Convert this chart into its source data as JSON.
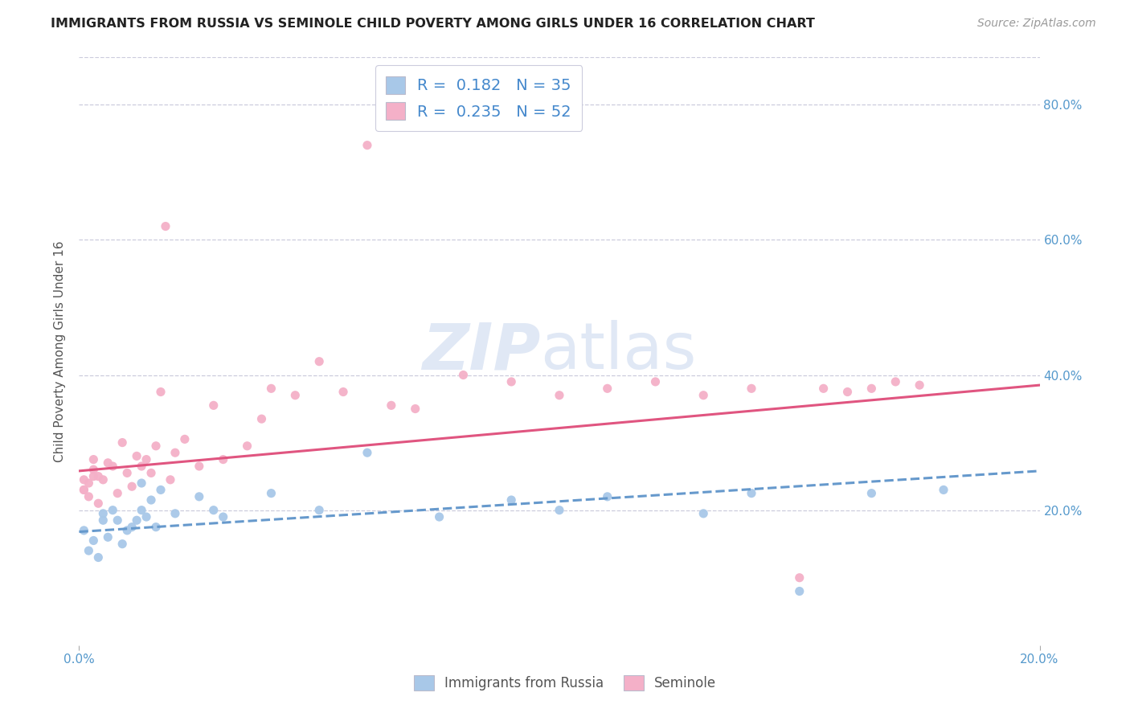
{
  "title": "IMMIGRANTS FROM RUSSIA VS SEMINOLE CHILD POVERTY AMONG GIRLS UNDER 16 CORRELATION CHART",
  "source": "Source: ZipAtlas.com",
  "ylabel": "Child Poverty Among Girls Under 16",
  "xlim": [
    0.0,
    0.2
  ],
  "ylim": [
    0.0,
    0.87
  ],
  "yticks": [
    0.2,
    0.4,
    0.6,
    0.8
  ],
  "ytick_labels": [
    "20.0%",
    "40.0%",
    "60.0%",
    "80.0%"
  ],
  "xticks": [
    0.0,
    0.2
  ],
  "xtick_labels": [
    "0.0%",
    "20.0%"
  ],
  "blue_scatter_x": [
    0.001,
    0.002,
    0.003,
    0.004,
    0.005,
    0.005,
    0.006,
    0.007,
    0.008,
    0.009,
    0.01,
    0.011,
    0.012,
    0.013,
    0.013,
    0.014,
    0.015,
    0.016,
    0.017,
    0.02,
    0.025,
    0.028,
    0.03,
    0.04,
    0.05,
    0.06,
    0.075,
    0.09,
    0.1,
    0.11,
    0.13,
    0.14,
    0.15,
    0.165,
    0.18
  ],
  "blue_scatter_y": [
    0.17,
    0.14,
    0.155,
    0.13,
    0.185,
    0.195,
    0.16,
    0.2,
    0.185,
    0.15,
    0.17,
    0.175,
    0.185,
    0.2,
    0.24,
    0.19,
    0.215,
    0.175,
    0.23,
    0.195,
    0.22,
    0.2,
    0.19,
    0.225,
    0.2,
    0.285,
    0.19,
    0.215,
    0.2,
    0.22,
    0.195,
    0.225,
    0.08,
    0.225,
    0.23
  ],
  "pink_scatter_x": [
    0.001,
    0.002,
    0.003,
    0.004,
    0.005,
    0.006,
    0.007,
    0.008,
    0.009,
    0.01,
    0.011,
    0.012,
    0.013,
    0.014,
    0.015,
    0.016,
    0.017,
    0.018,
    0.019,
    0.02,
    0.022,
    0.025,
    0.028,
    0.03,
    0.035,
    0.038,
    0.04,
    0.045,
    0.05,
    0.055,
    0.06,
    0.065,
    0.07,
    0.08,
    0.09,
    0.1,
    0.11,
    0.12,
    0.13,
    0.14,
    0.15,
    0.155,
    0.16,
    0.165,
    0.17,
    0.175,
    0.003,
    0.004,
    0.003,
    0.002,
    0.001,
    0.001
  ],
  "pink_scatter_y": [
    0.23,
    0.22,
    0.25,
    0.21,
    0.245,
    0.27,
    0.265,
    0.225,
    0.3,
    0.255,
    0.235,
    0.28,
    0.265,
    0.275,
    0.255,
    0.295,
    0.375,
    0.62,
    0.245,
    0.285,
    0.305,
    0.265,
    0.355,
    0.275,
    0.295,
    0.335,
    0.38,
    0.37,
    0.42,
    0.375,
    0.74,
    0.355,
    0.35,
    0.4,
    0.39,
    0.37,
    0.38,
    0.39,
    0.37,
    0.38,
    0.1,
    0.38,
    0.375,
    0.38,
    0.39,
    0.385,
    0.26,
    0.25,
    0.275,
    0.24,
    0.245,
    0.23
  ],
  "blue_line_x": [
    0.0,
    0.2
  ],
  "blue_line_y": [
    0.168,
    0.258
  ],
  "pink_line_x": [
    0.0,
    0.2
  ],
  "pink_line_y": [
    0.258,
    0.385
  ],
  "blue_color": "#A8C8E8",
  "pink_color": "#F4B0C8",
  "blue_line_color": "#6699CC",
  "pink_line_color": "#E05580",
  "blue_R": "0.182",
  "blue_N": "35",
  "pink_R": "0.235",
  "pink_N": "52",
  "legend_blue_label": "Immigrants from Russia",
  "legend_pink_label": "Seminole",
  "grid_color": "#CCCCDD",
  "background_color": "#FFFFFF",
  "title_color": "#222222",
  "axis_label_color": "#555555",
  "tick_color": "#5599CC",
  "stat_text_color": "#4488CC",
  "watermark_zip_color": "#DDEEFF",
  "watermark_atlas_color": "#DDEEFF"
}
